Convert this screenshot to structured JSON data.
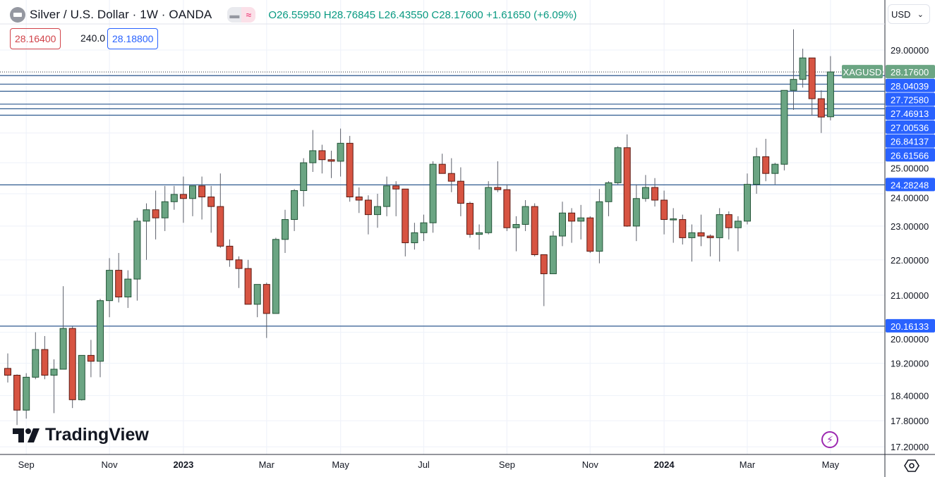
{
  "header": {
    "title": "Silver / U.S. Dollar · 1W · OANDA",
    "ohlc": "O26.55950 H28.76845 L26.43550 C28.17600 +1.61650 (+6.09%)",
    "bid": "28.16400",
    "spread": "240.0",
    "ask": "28.18800",
    "currency": "USD",
    "logo_text": "TradingView"
  },
  "colors": {
    "up": "#6ba583",
    "down": "#d75442",
    "up_border": "#225437",
    "down_border": "#5b1a13",
    "level_line": "#2f5a8f",
    "level_label": "#2962ff",
    "last_price": "#6ba583"
  },
  "icons": [
    "symbol-icon",
    "compare-icon",
    "indicator-icon",
    "chevron-down-icon",
    "tradingview-logo-icon",
    "lightning-icon",
    "settings-icon"
  ],
  "chart_data": {
    "type": "candlestick",
    "symbol": "XAGUSD",
    "timeframe": "1W",
    "y_scale": "log",
    "ylim": [
      17.0,
      30.2
    ],
    "grid": true,
    "y_ticks": [
      "29.00000",
      "25.00000",
      "24.00000",
      "23.00000",
      "22.00000",
      "21.00000",
      "20.00000",
      "19.20000",
      "18.40000",
      "17.80000",
      "17.20000"
    ],
    "y_tick_values": [
      29,
      25,
      24,
      23,
      22,
      21,
      20,
      19.2,
      18.4,
      17.8,
      17.2
    ],
    "x_ticks": [
      "Sep",
      "Nov",
      "2023",
      "Mar",
      "May",
      "Jul",
      "Sep",
      "Nov",
      "2024",
      "Mar",
      "May"
    ],
    "x_tick_candle_index": [
      2,
      11,
      19,
      28,
      36,
      45,
      54,
      63,
      71,
      80,
      89
    ],
    "last_price": {
      "label": "XAGUSD",
      "value": "28.17600",
      "price": 28.176
    },
    "levels": [
      {
        "value": "28.04039",
        "price": 28.04039
      },
      {
        "value": "27.72580",
        "price": 27.7258
      },
      {
        "value": "27.46913",
        "price": 27.46913
      },
      {
        "value": "27.00536",
        "price": 27.00536
      },
      {
        "value": "26.84137",
        "price": 26.84137
      },
      {
        "value": "26.61566",
        "price": 26.61566
      },
      {
        "value": "24.28248",
        "price": 24.28248
      },
      {
        "value": "20.16133",
        "price": 20.16133
      }
    ],
    "candles_ohlc": [
      [
        19.07,
        19.45,
        18.72,
        18.9
      ],
      [
        18.9,
        18.92,
        17.7,
        18.05
      ],
      [
        18.05,
        18.95,
        17.85,
        18.85
      ],
      [
        18.85,
        20.0,
        18.8,
        19.55
      ],
      [
        19.55,
        19.9,
        18.8,
        18.9
      ],
      [
        18.9,
        19.3,
        17.98,
        19.05
      ],
      [
        19.05,
        21.25,
        19.05,
        20.1
      ],
      [
        20.1,
        20.15,
        18.1,
        18.3
      ],
      [
        18.3,
        19.4,
        18.28,
        19.4
      ],
      [
        19.4,
        19.8,
        18.85,
        19.25
      ],
      [
        19.25,
        20.9,
        18.85,
        20.85
      ],
      [
        20.85,
        22.05,
        20.4,
        21.7
      ],
      [
        21.7,
        22.2,
        20.8,
        20.95
      ],
      [
        20.95,
        21.7,
        20.65,
        21.45
      ],
      [
        21.45,
        23.25,
        20.85,
        23.15
      ],
      [
        23.15,
        23.7,
        22.0,
        23.5
      ],
      [
        23.5,
        24.1,
        22.6,
        23.25
      ],
      [
        23.25,
        24.25,
        22.85,
        23.75
      ],
      [
        23.75,
        24.25,
        23.5,
        23.98
      ],
      [
        23.98,
        24.55,
        23.1,
        23.85
      ],
      [
        23.85,
        24.25,
        23.3,
        24.25
      ],
      [
        24.25,
        24.55,
        23.2,
        23.9
      ],
      [
        23.9,
        24.25,
        22.8,
        23.6
      ],
      [
        23.6,
        24.65,
        22.35,
        22.4
      ],
      [
        22.4,
        22.6,
        21.8,
        22.0
      ],
      [
        22.0,
        22.1,
        21.2,
        21.75
      ],
      [
        21.75,
        22.0,
        20.75,
        20.75
      ],
      [
        20.75,
        21.3,
        20.4,
        21.3
      ],
      [
        21.3,
        21.35,
        19.85,
        20.5
      ],
      [
        20.5,
        22.65,
        20.5,
        22.6
      ],
      [
        22.6,
        23.5,
        22.2,
        23.2
      ],
      [
        23.2,
        24.15,
        22.85,
        24.1
      ],
      [
        24.1,
        25.15,
        23.6,
        25.0
      ],
      [
        25.0,
        26.1,
        24.7,
        25.4
      ],
      [
        25.4,
        25.6,
        24.65,
        25.1
      ],
      [
        25.1,
        25.4,
        24.5,
        25.05
      ],
      [
        25.05,
        26.15,
        24.55,
        25.65
      ],
      [
        25.65,
        25.9,
        23.75,
        23.9
      ],
      [
        23.9,
        24.2,
        23.4,
        23.8
      ],
      [
        23.8,
        23.95,
        22.75,
        23.35
      ],
      [
        23.35,
        24.0,
        22.95,
        23.6
      ],
      [
        23.6,
        24.55,
        23.3,
        24.25
      ],
      [
        24.25,
        24.4,
        23.3,
        24.15
      ],
      [
        24.15,
        24.15,
        22.1,
        22.5
      ],
      [
        22.5,
        23.1,
        22.3,
        22.8
      ],
      [
        22.8,
        23.35,
        22.55,
        23.1
      ],
      [
        23.1,
        25.05,
        22.8,
        24.95
      ],
      [
        24.95,
        25.3,
        24.65,
        24.65
      ],
      [
        24.65,
        25.15,
        24.05,
        24.4
      ],
      [
        24.4,
        24.85,
        23.3,
        23.7
      ],
      [
        23.7,
        23.75,
        22.65,
        22.75
      ],
      [
        22.75,
        23.05,
        22.3,
        22.8
      ],
      [
        22.8,
        24.4,
        22.75,
        24.2
      ],
      [
        24.2,
        25.05,
        24.05,
        24.13
      ],
      [
        24.13,
        24.3,
        22.85,
        22.95
      ],
      [
        22.95,
        23.3,
        22.25,
        23.05
      ],
      [
        23.05,
        23.8,
        22.85,
        23.6
      ],
      [
        23.6,
        23.7,
        22.1,
        22.15
      ],
      [
        22.15,
        22.15,
        20.7,
        21.6
      ],
      [
        21.6,
        22.85,
        21.6,
        22.7
      ],
      [
        22.7,
        23.75,
        22.4,
        23.4
      ],
      [
        23.4,
        23.55,
        22.5,
        23.15
      ],
      [
        23.15,
        23.65,
        22.6,
        23.25
      ],
      [
        23.25,
        23.3,
        22.2,
        22.25
      ],
      [
        22.25,
        24.15,
        21.9,
        23.75
      ],
      [
        23.75,
        24.4,
        23.3,
        24.35
      ],
      [
        24.35,
        25.55,
        24.3,
        25.5
      ],
      [
        25.5,
        25.95,
        22.98,
        23.0
      ],
      [
        23.0,
        24.3,
        22.55,
        23.85
      ],
      [
        23.85,
        24.6,
        23.75,
        24.2
      ],
      [
        24.2,
        24.5,
        23.6,
        23.8
      ],
      [
        23.8,
        24.1,
        22.75,
        23.2
      ],
      [
        23.2,
        23.55,
        22.5,
        23.22
      ],
      [
        23.2,
        23.35,
        22.45,
        22.65
      ],
      [
        22.65,
        23.05,
        21.95,
        22.8
      ],
      [
        22.8,
        23.35,
        22.4,
        22.7
      ],
      [
        22.7,
        22.75,
        22.1,
        22.65
      ],
      [
        22.65,
        23.55,
        21.95,
        23.35
      ],
      [
        23.35,
        23.45,
        22.6,
        22.95
      ],
      [
        22.95,
        23.3,
        22.25,
        23.15
      ],
      [
        23.15,
        24.65,
        23.05,
        24.3
      ],
      [
        24.3,
        25.5,
        24.0,
        25.2
      ],
      [
        25.2,
        25.8,
        24.4,
        24.65
      ],
      [
        24.65,
        25.0,
        24.3,
        24.95
      ],
      [
        24.95,
        27.5,
        24.75,
        27.5
      ],
      [
        27.5,
        29.8,
        26.8,
        27.9
      ],
      [
        27.9,
        29.05,
        27.6,
        28.7
      ],
      [
        28.7,
        28.7,
        26.6,
        27.2
      ],
      [
        27.2,
        27.5,
        26.0,
        26.55
      ],
      [
        26.5595,
        28.76845,
        26.4355,
        28.176
      ]
    ]
  }
}
